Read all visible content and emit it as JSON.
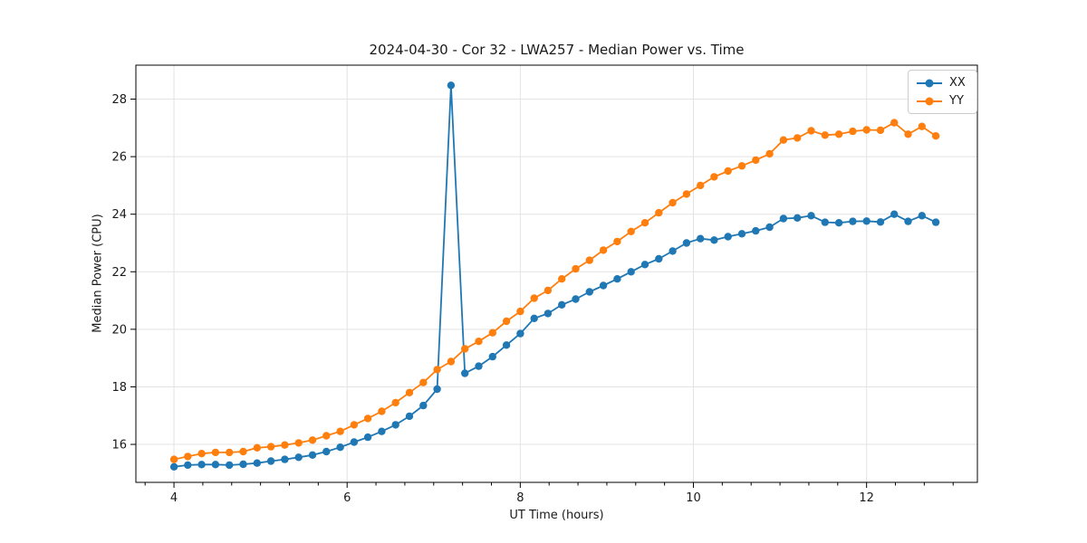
{
  "chart_data": {
    "type": "line",
    "title": "2024-04-30 - Cor 32 - LWA257 - Median Power vs. Time",
    "xlabel": "UT Time (hours)",
    "ylabel": "Median Power (CPU)",
    "xlim": [
      3.56,
      13.28
    ],
    "ylim": [
      14.68,
      29.18
    ],
    "xticks": [
      4,
      6,
      8,
      10,
      12
    ],
    "yticks": [
      16,
      18,
      20,
      22,
      24,
      26,
      28
    ],
    "x_minor_step": 0.33333,
    "grid": true,
    "legend_position": "upper right",
    "background": "#ffffff",
    "grid_color": "#e3e3e3",
    "spine_color": "#000000",
    "text_color": "#1a1a1a",
    "x": [
      4.0,
      4.16,
      4.32,
      4.48,
      4.64,
      4.8,
      4.96,
      5.12,
      5.28,
      5.44,
      5.6,
      5.76,
      5.92,
      6.08,
      6.24,
      6.4,
      6.56,
      6.72,
      6.88,
      7.04,
      7.2,
      7.36,
      7.52,
      7.68,
      7.84,
      8.0,
      8.16,
      8.32,
      8.48,
      8.64,
      8.8,
      8.96,
      9.12,
      9.28,
      9.44,
      9.6,
      9.76,
      9.92,
      10.08,
      10.24,
      10.4,
      10.56,
      10.72,
      10.88,
      11.04,
      11.2,
      11.36,
      11.52,
      11.68,
      11.84,
      12.0,
      12.16,
      12.32,
      12.48,
      12.64,
      12.8
    ],
    "series": [
      {
        "name": "XX",
        "color": "#1f77b4",
        "values": [
          15.22,
          15.28,
          15.3,
          15.3,
          15.28,
          15.31,
          15.35,
          15.42,
          15.48,
          15.55,
          15.63,
          15.75,
          15.9,
          16.08,
          16.25,
          16.45,
          16.68,
          16.98,
          17.35,
          17.92,
          28.48,
          18.47,
          18.72,
          19.05,
          19.45,
          19.85,
          20.38,
          20.55,
          20.85,
          21.05,
          21.3,
          21.52,
          21.75,
          22.0,
          22.25,
          22.45,
          22.72,
          23.0,
          23.15,
          23.1,
          23.22,
          23.32,
          23.42,
          23.55,
          23.85,
          23.87,
          23.95,
          23.72,
          23.7,
          23.75,
          23.76,
          23.73,
          24.0,
          23.75,
          23.95,
          23.72
        ]
      },
      {
        "name": "YY",
        "color": "#ff7f0e",
        "values": [
          15.48,
          15.58,
          15.68,
          15.72,
          15.72,
          15.75,
          15.88,
          15.92,
          15.98,
          16.05,
          16.15,
          16.3,
          16.45,
          16.68,
          16.9,
          17.15,
          17.45,
          17.8,
          18.15,
          18.6,
          18.88,
          19.32,
          19.58,
          19.88,
          20.28,
          20.62,
          21.08,
          21.35,
          21.75,
          22.1,
          22.4,
          22.75,
          23.05,
          23.4,
          23.7,
          24.05,
          24.4,
          24.7,
          25.0,
          25.3,
          25.5,
          25.68,
          25.88,
          26.1,
          26.58,
          26.65,
          26.9,
          26.75,
          26.78,
          26.88,
          26.93,
          26.92,
          27.18,
          26.78,
          27.05,
          26.72
        ]
      }
    ]
  }
}
